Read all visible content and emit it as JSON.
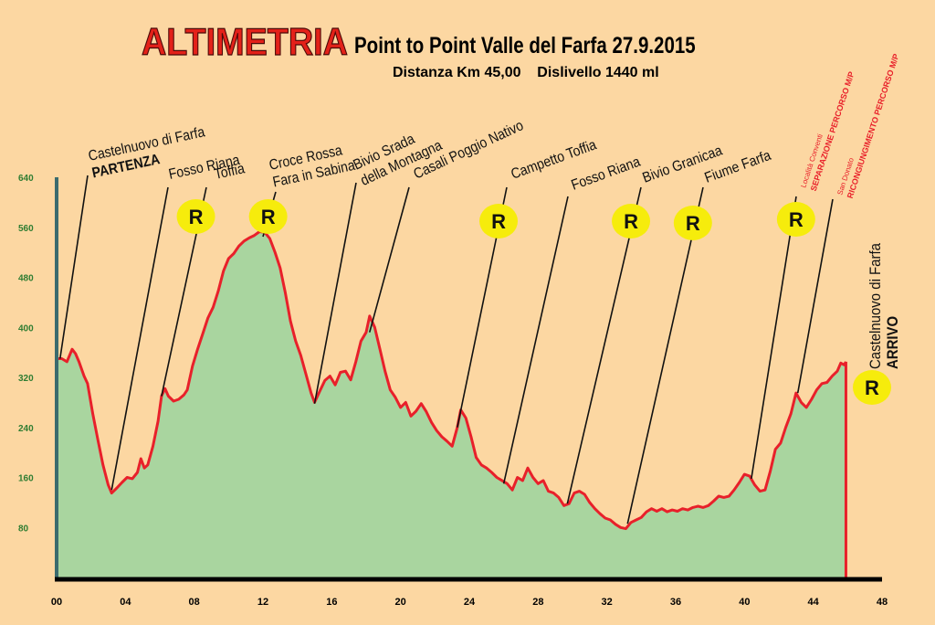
{
  "title": "ALTIMETRIA",
  "subtitle": "Point to Point Valle del Farfa 27.9.2015",
  "info": "Distanza Km 45,00    Dislivello 1440 ml",
  "colors": {
    "background": "#fcd7a2",
    "area_fill": "#a9d59f",
    "profile_line": "#e8202a",
    "title": "#e32119",
    "axis_y_labels": "#2f7d32",
    "refreshment_badge": "#f6ec0c",
    "red_labels": "#e8202a"
  },
  "chart_data": {
    "type": "area",
    "xlim": [
      0,
      48
    ],
    "ylim": [
      0,
      640
    ],
    "x_ticks": [
      "00",
      "04",
      "08",
      "12",
      "16",
      "20",
      "24",
      "28",
      "32",
      "36",
      "40",
      "44",
      "48"
    ],
    "y_ticks": [
      "640",
      "560",
      "480",
      "400",
      "320",
      "240",
      "160",
      "80"
    ],
    "grid": false,
    "series": [
      {
        "values": [
          [
            0,
            350
          ],
          [
            0.3,
            350
          ],
          [
            0.6,
            345
          ],
          [
            0.9,
            365
          ],
          [
            1.1,
            358
          ],
          [
            1.3,
            345
          ],
          [
            1.6,
            322
          ],
          [
            1.8,
            310
          ],
          [
            2.1,
            262
          ],
          [
            2.4,
            220
          ],
          [
            2.7,
            180
          ],
          [
            3.0,
            148
          ],
          [
            3.2,
            135
          ],
          [
            3.5,
            143
          ],
          [
            3.8,
            152
          ],
          [
            4.1,
            160
          ],
          [
            4.4,
            158
          ],
          [
            4.7,
            168
          ],
          [
            4.9,
            190
          ],
          [
            5.1,
            175
          ],
          [
            5.3,
            180
          ],
          [
            5.6,
            210
          ],
          [
            5.9,
            250
          ],
          [
            6.1,
            290
          ],
          [
            6.3,
            302
          ],
          [
            6.5,
            290
          ],
          [
            6.8,
            282
          ],
          [
            7.1,
            285
          ],
          [
            7.4,
            292
          ],
          [
            7.6,
            300
          ],
          [
            7.9,
            338
          ],
          [
            8.2,
            365
          ],
          [
            8.5,
            390
          ],
          [
            8.8,
            415
          ],
          [
            9.1,
            432
          ],
          [
            9.4,
            458
          ],
          [
            9.7,
            490
          ],
          [
            10.0,
            510
          ],
          [
            10.3,
            518
          ],
          [
            10.6,
            530
          ],
          [
            10.9,
            538
          ],
          [
            11.2,
            543
          ],
          [
            11.5,
            547
          ],
          [
            11.8,
            553
          ],
          [
            12.1,
            552
          ],
          [
            12.4,
            542
          ],
          [
            12.7,
            520
          ],
          [
            13.0,
            495
          ],
          [
            13.3,
            455
          ],
          [
            13.6,
            410
          ],
          [
            13.9,
            378
          ],
          [
            14.2,
            355
          ],
          [
            14.5,
            325
          ],
          [
            14.8,
            295
          ],
          [
            15.0,
            280
          ],
          [
            15.3,
            298
          ],
          [
            15.6,
            315
          ],
          [
            15.9,
            322
          ],
          [
            16.2,
            308
          ],
          [
            16.5,
            328
          ],
          [
            16.8,
            330
          ],
          [
            17.1,
            316
          ],
          [
            17.4,
            345
          ],
          [
            17.7,
            378
          ],
          [
            18.0,
            392
          ],
          [
            18.2,
            418
          ],
          [
            18.5,
            400
          ],
          [
            18.8,
            365
          ],
          [
            19.1,
            330
          ],
          [
            19.4,
            300
          ],
          [
            19.7,
            288
          ],
          [
            20.0,
            272
          ],
          [
            20.3,
            280
          ],
          [
            20.6,
            258
          ],
          [
            20.9,
            266
          ],
          [
            21.2,
            278
          ],
          [
            21.5,
            265
          ],
          [
            21.8,
            248
          ],
          [
            22.1,
            235
          ],
          [
            22.4,
            225
          ],
          [
            22.7,
            218
          ],
          [
            23.0,
            210
          ],
          [
            23.3,
            240
          ],
          [
            23.5,
            268
          ],
          [
            23.8,
            255
          ],
          [
            24.1,
            225
          ],
          [
            24.4,
            192
          ],
          [
            24.7,
            180
          ],
          [
            25.0,
            175
          ],
          [
            25.3,
            168
          ],
          [
            25.6,
            160
          ],
          [
            25.9,
            155
          ],
          [
            26.2,
            150
          ],
          [
            26.5,
            140
          ],
          [
            26.8,
            160
          ],
          [
            27.1,
            155
          ],
          [
            27.4,
            175
          ],
          [
            27.7,
            160
          ],
          [
            28.0,
            150
          ],
          [
            28.3,
            155
          ],
          [
            28.6,
            138
          ],
          [
            28.9,
            135
          ],
          [
            29.2,
            128
          ],
          [
            29.5,
            115
          ],
          [
            29.8,
            118
          ],
          [
            30.1,
            135
          ],
          [
            30.4,
            138
          ],
          [
            30.7,
            133
          ],
          [
            31.0,
            120
          ],
          [
            31.3,
            110
          ],
          [
            31.6,
            102
          ],
          [
            31.9,
            95
          ],
          [
            32.2,
            92
          ],
          [
            32.5,
            85
          ],
          [
            32.8,
            80
          ],
          [
            33.1,
            78
          ],
          [
            33.4,
            88
          ],
          [
            33.7,
            92
          ],
          [
            34.0,
            96
          ],
          [
            34.3,
            105
          ],
          [
            34.6,
            110
          ],
          [
            34.9,
            106
          ],
          [
            35.2,
            110
          ],
          [
            35.5,
            105
          ],
          [
            35.8,
            108
          ],
          [
            36.1,
            106
          ],
          [
            36.4,
            110
          ],
          [
            36.7,
            108
          ],
          [
            37.0,
            112
          ],
          [
            37.3,
            114
          ],
          [
            37.6,
            112
          ],
          [
            37.9,
            115
          ],
          [
            38.2,
            122
          ],
          [
            38.5,
            130
          ],
          [
            38.8,
            128
          ],
          [
            39.1,
            130
          ],
          [
            39.4,
            140
          ],
          [
            39.7,
            152
          ],
          [
            40.0,
            165
          ],
          [
            40.3,
            162
          ],
          [
            40.6,
            148
          ],
          [
            40.9,
            138
          ],
          [
            41.2,
            140
          ],
          [
            41.5,
            170
          ],
          [
            41.8,
            205
          ],
          [
            42.1,
            215
          ],
          [
            42.4,
            240
          ],
          [
            42.7,
            262
          ],
          [
            43.0,
            295
          ],
          [
            43.3,
            280
          ],
          [
            43.6,
            272
          ],
          [
            43.9,
            285
          ],
          [
            44.2,
            300
          ],
          [
            44.5,
            310
          ],
          [
            44.8,
            312
          ],
          [
            45.1,
            322
          ],
          [
            45.4,
            330
          ],
          [
            45.6,
            343
          ],
          [
            45.8,
            340
          ],
          [
            45.9,
            345
          ]
        ]
      }
    ],
    "refreshment_points": [
      {
        "label": "R",
        "km": 8.1
      },
      {
        "label": "R",
        "km": 12.3
      },
      {
        "label": "R",
        "km": 25.7
      },
      {
        "label": "R",
        "km": 33.4
      },
      {
        "label": "R",
        "km": 37.0
      },
      {
        "label": "R",
        "km": 43.0
      },
      {
        "label": "R",
        "km": 47.1
      }
    ],
    "waypoints": [
      {
        "lines": [
          "Castelnuovo di Farfa",
          "PARTENZA"
        ],
        "km": 0.2,
        "alt": 350
      },
      {
        "lines": [
          "Fosso Riana"
        ],
        "km": 3.2,
        "alt": 140
      },
      {
        "lines": [
          "Toffia"
        ],
        "km": 6.1,
        "alt": 290
      },
      {
        "lines": [
          "Croce Rossa",
          "Fara in Sabina"
        ],
        "km": 12.0,
        "alt": 545
      },
      {
        "lines": [
          "Bivio Srada",
          "della Montagna"
        ],
        "km": 15.0,
        "alt": 278
      },
      {
        "lines": [
          "Casali Poggio Nativo"
        ],
        "km": 18.2,
        "alt": 392
      },
      {
        "lines": [
          "Campetto  Toffia"
        ],
        "km": 23.3,
        "alt": 240
      },
      {
        "lines": [
          "Fosso Riana"
        ],
        "km": 26.0,
        "alt": 150
      },
      {
        "lines": [
          "Bivio Granicaa"
        ],
        "km": 29.7,
        "alt": 118
      },
      {
        "lines": [
          "Fiume Farfa"
        ],
        "km": 33.2,
        "alt": 86
      },
      {
        "lines": [
          "Località Conventi",
          "SEPARAZIONE PERCORSO M/P"
        ],
        "km": 40.4,
        "alt": 158
      },
      {
        "lines": [
          "San Donato",
          "RICONGIUNGIMENTO PERCORSO M/P"
        ],
        "km": 43.1,
        "alt": 295
      },
      {
        "lines": [
          "Castelnuovo di Farfa",
          "ARRIVO"
        ],
        "km": 45.9,
        "alt": 345
      }
    ]
  }
}
